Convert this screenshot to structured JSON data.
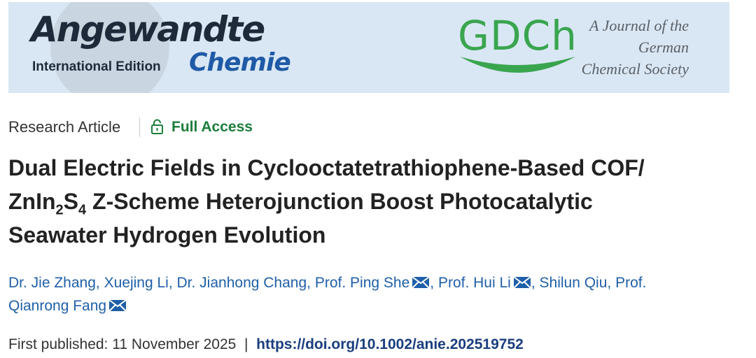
{
  "header": {
    "journal_name": "Angewandte",
    "journal_subname": "Chemie",
    "edition": "International Edition",
    "society_logo": "GDCh",
    "society_lines": [
      "A Journal of the",
      "German",
      "Chemical Society"
    ]
  },
  "article": {
    "type": "Research Article",
    "access": "Full Access",
    "title_parts": [
      "Dual Electric Fields in Cyclooctatetrathiophene-Based COF/",
      "ZnIn",
      "2",
      "S",
      "4",
      " Z-Scheme Heterojunction Boost Photocatalytic",
      "Seawater Hydrogen Evolution"
    ],
    "authors": [
      {
        "name": "Dr. Jie Zhang",
        "corresponding": false
      },
      {
        "name": "Xuejing Li",
        "corresponding": false
      },
      {
        "name": "Dr. Jianhong Chang",
        "corresponding": false
      },
      {
        "name": "Prof. Ping She",
        "corresponding": true
      },
      {
        "name": "Prof. Hui Li",
        "corresponding": true
      },
      {
        "name": "Shilun Qiu",
        "corresponding": false
      },
      {
        "name": "Prof. Qianrong Fang",
        "corresponding": true
      }
    ],
    "author_separator": ",",
    "published_label": "First published:",
    "published_date": "11 November 2025",
    "divider": "|",
    "doi": "https://doi.org/10.1002/anie.202519752"
  }
}
